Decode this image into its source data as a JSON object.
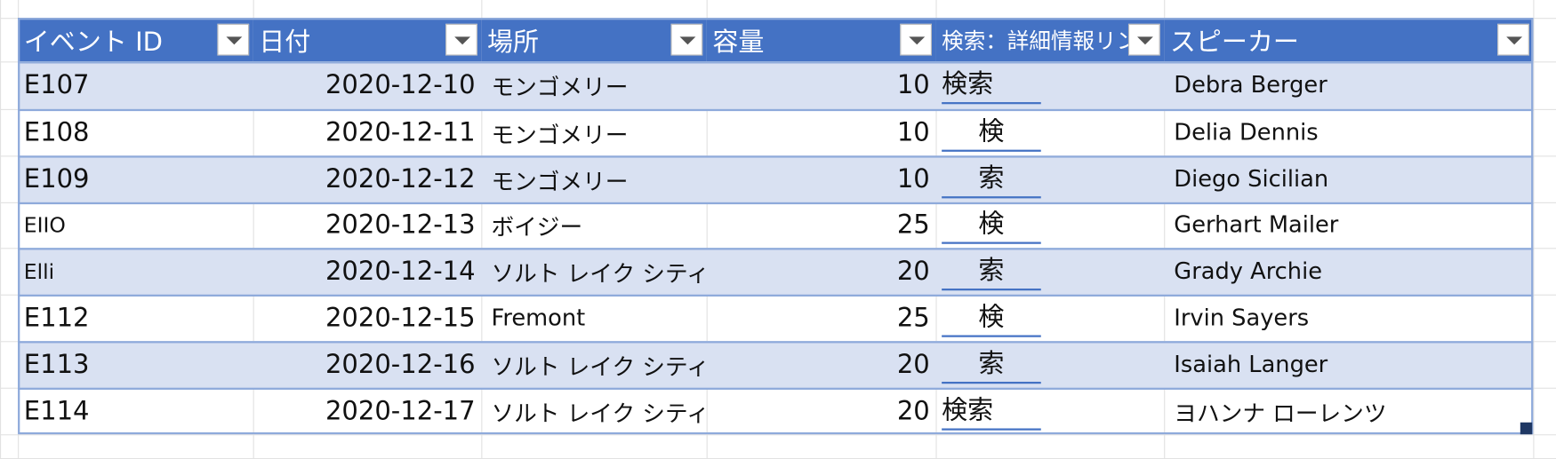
{
  "table": {
    "columns": [
      "イベント ID",
      "日付",
      "場所",
      "容量",
      "検索：詳細情報リン",
      "スピーカー"
    ],
    "rows": [
      [
        "E107",
        "2020-12-10",
        "モンゴメリー",
        "10",
        "検索",
        "Debra Berger"
      ],
      [
        "E108",
        "2020-12-11",
        "モンゴメリー",
        "10",
        "検",
        "Delia Dennis"
      ],
      [
        "E109",
        "2020-12-12",
        "モンゴメリー",
        "10",
        "索",
        "Diego Sicilian"
      ],
      [
        "EIIO",
        "2020-12-13",
        "ボイジー",
        "25",
        "検",
        "Gerhart Mailer"
      ],
      [
        "Elli",
        "2020-12-14",
        "ソルト レイク シティ",
        "20",
        "索",
        "Grady Archie"
      ],
      [
        "E112",
        "2020-12-15",
        "Fremont",
        "25",
        "検",
        "Irvin Sayers"
      ],
      [
        "E113",
        "2020-12-16",
        "ソルト レイク シティ",
        "20",
        "索",
        "Isaiah Langer"
      ],
      [
        "E114",
        "2020-12-17",
        "ソルト レイク シティ",
        "20",
        "検索",
        "ヨハンナ ローレンツ"
      ]
    ]
  }
}
